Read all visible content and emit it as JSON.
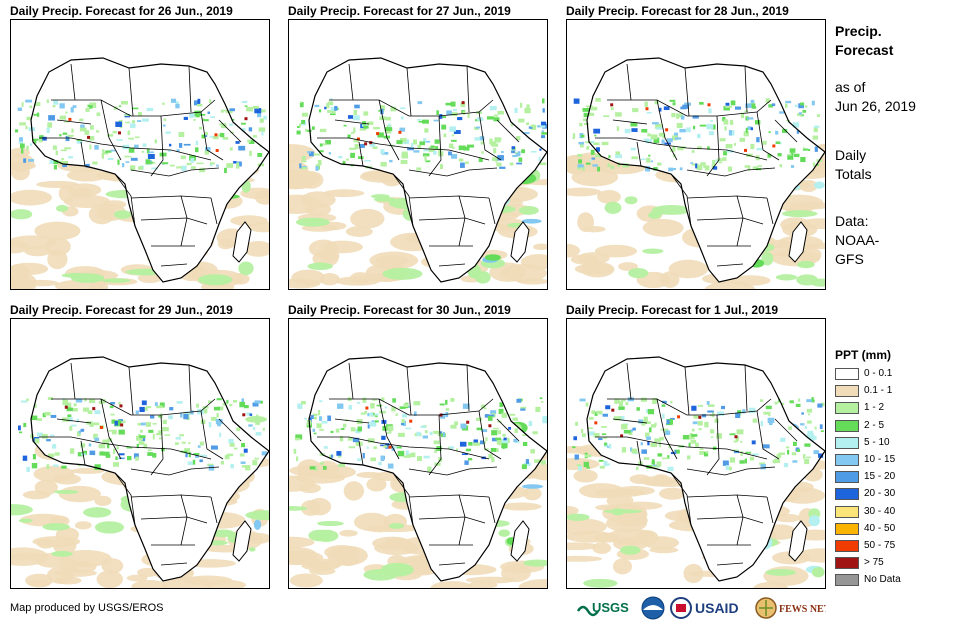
{
  "panels": [
    {
      "title": "Daily Precip. Forecast for 26 Jun., 2019"
    },
    {
      "title": "Daily Precip. Forecast for 27 Jun., 2019"
    },
    {
      "title": "Daily Precip. Forecast for 28 Jun., 2019"
    },
    {
      "title": "Daily Precip. Forecast for 29 Jun., 2019"
    },
    {
      "title": "Daily Precip. Forecast for 30 Jun., 2019"
    },
    {
      "title": "Daily Precip. Forecast for 1 Jul., 2019"
    }
  ],
  "sidebar": {
    "product_line1": "Precip.",
    "product_line2": "Forecast",
    "asof_line1": "as of",
    "asof_line2": "Jun 26, 2019",
    "type_line1": "Daily",
    "type_line2": "Totals",
    "data_line1": "Data:",
    "data_line2": "NOAA-",
    "data_line3": "GFS"
  },
  "legend": {
    "title": "PPT (mm)",
    "items": [
      {
        "label": "0 - 0.1",
        "color": "#ffffff"
      },
      {
        "label": "0.1 - 1",
        "color": "#f0dcb8"
      },
      {
        "label": "1 - 2",
        "color": "#b4f0a0"
      },
      {
        "label": "2 - 5",
        "color": "#64dc5a"
      },
      {
        "label": "5 - 10",
        "color": "#b4f0f0"
      },
      {
        "label": "10 - 15",
        "color": "#82c8f0"
      },
      {
        "label": "15 - 20",
        "color": "#509be6"
      },
      {
        "label": "20 - 30",
        "color": "#1e64dc"
      },
      {
        "label": "30 - 40",
        "color": "#fae678"
      },
      {
        "label": "40 - 50",
        "color": "#fab400"
      },
      {
        "label": "50 - 75",
        "color": "#f03c00"
      },
      {
        "label": "> 75",
        "color": "#a01414"
      },
      {
        "label": "No Data",
        "color": "#969696"
      }
    ]
  },
  "footer": {
    "credit": "Map produced by USGS/EROS",
    "logos": [
      "USGS",
      "NOAA",
      "USAID",
      "FEWS NET"
    ]
  }
}
